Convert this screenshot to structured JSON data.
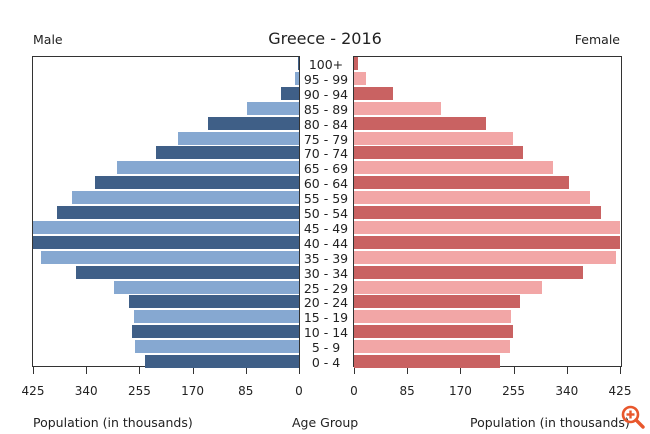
{
  "header": {
    "title": "Greece - 2016",
    "left_label": "Male",
    "right_label": "Female"
  },
  "footer": {
    "left_axis_label": "Population (in thousands)",
    "center_label": "Age Group",
    "right_axis_label": "Population (in thousands)"
  },
  "controls": {
    "zoom_icon": "zoom-in-icon"
  },
  "colors": {
    "male_dark": "#3f5f87",
    "male_light": "#86a8d1",
    "female_dark": "#c96262",
    "female_light": "#f2a6a6",
    "zoom_icon": "#e8572c"
  },
  "chart_data": {
    "type": "bar",
    "subtype": "population-pyramid",
    "title": "Greece - 2016",
    "xlabel": "Population (in thousands)",
    "ylabel": "Age Group",
    "categories": [
      "100+",
      "95 - 99",
      "90 - 94",
      "85 - 89",
      "80 - 84",
      "75 - 79",
      "70 - 74",
      "65 - 69",
      "60 - 64",
      "55 - 59",
      "50 - 54",
      "45 - 49",
      "40 - 44",
      "35 - 39",
      "30 - 34",
      "25 - 29",
      "20 - 24",
      "15 - 19",
      "10 - 14",
      "5 - 9",
      "0 - 4"
    ],
    "series": [
      {
        "name": "Male",
        "values": [
          1,
          6,
          29,
          83,
          145,
          193,
          228,
          290,
          326,
          362,
          386,
          425,
          425,
          412,
          357,
          295,
          271,
          263,
          267,
          262,
          246
        ]
      },
      {
        "name": "Female",
        "values": [
          6,
          19,
          62,
          139,
          211,
          254,
          270,
          318,
          343,
          377,
          395,
          425,
          425,
          419,
          366,
          300,
          265,
          251,
          254,
          249,
          233
        ]
      }
    ],
    "xlim": [
      0,
      425
    ],
    "male_ticks": [
      "425",
      "340",
      "255",
      "170",
      "85",
      "0"
    ],
    "female_ticks": [
      "0",
      "85",
      "170",
      "255",
      "340",
      "425"
    ],
    "grid": false,
    "legend": {
      "left": "Male",
      "right": "Female"
    }
  }
}
